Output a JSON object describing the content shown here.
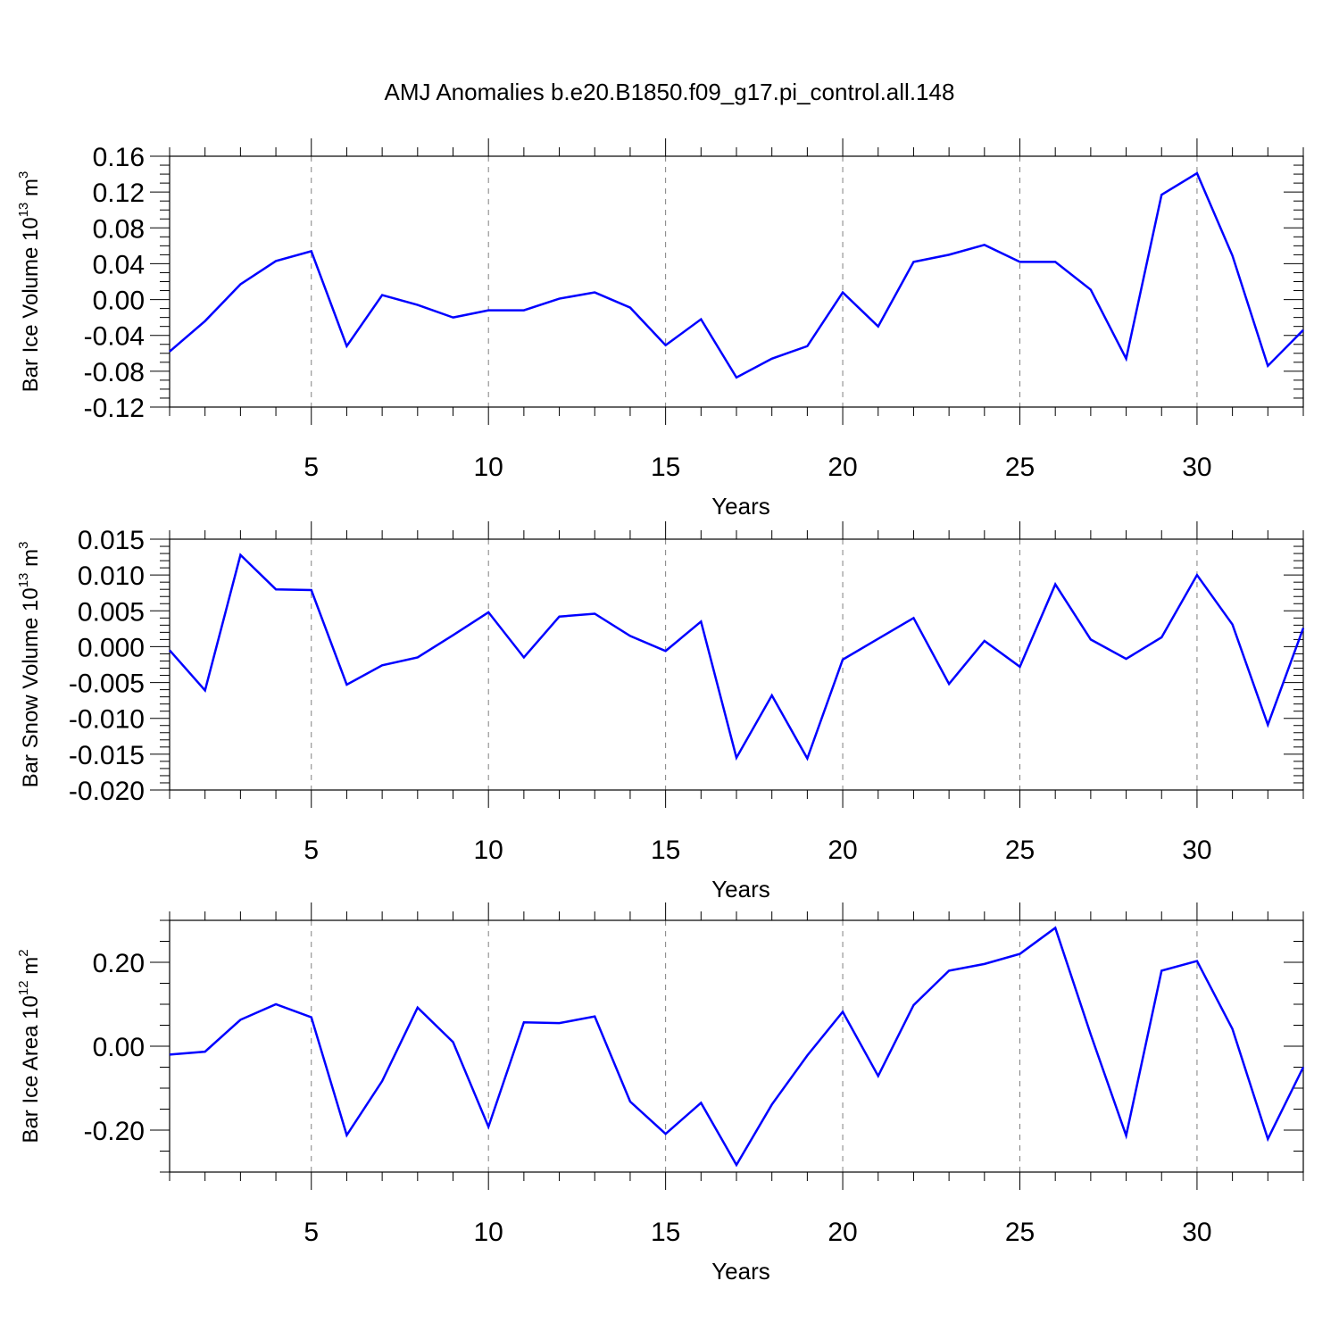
{
  "page": {
    "title": "AMJ Anomalies b.e20.B1850.f09_g17.pi_control.all.148"
  },
  "colors": {
    "series": "#0000ff",
    "axis": "#000000",
    "grid": "#808080"
  },
  "chart_data": [
    {
      "type": "line",
      "ylabel_main": "Bar Ice Volume 10",
      "ylabel_exp": "13",
      "ylabel_unit": "m",
      "ylabel_unit_exp": "3",
      "xlabel": "Years",
      "xlim": [
        1,
        33
      ],
      "ylim": [
        -0.12,
        0.16
      ],
      "ytick_values": [
        -0.12,
        -0.08,
        -0.04,
        0.0,
        0.04,
        0.08,
        0.12,
        0.16
      ],
      "ytick_labels": [
        "-0.12",
        "-0.08",
        "-0.04",
        "0.00",
        "0.04",
        "0.08",
        "0.12",
        "0.16"
      ],
      "ytick_minor_step": 0.01,
      "xtick_values": [
        5,
        10,
        15,
        20,
        25,
        30
      ],
      "xtick_labels": [
        "5",
        "10",
        "15",
        "20",
        "25",
        "30"
      ],
      "grid_x": true,
      "x": [
        1,
        2,
        3,
        4,
        5,
        6,
        7,
        8,
        9,
        10,
        11,
        12,
        13,
        14,
        15,
        16,
        17,
        18,
        19,
        20,
        21,
        22,
        23,
        24,
        25,
        26,
        27,
        28,
        29,
        30,
        31,
        32,
        33
      ],
      "values": [
        -0.058,
        -0.024,
        0.017,
        0.043,
        0.054,
        -0.052,
        0.005,
        -0.006,
        -0.02,
        -0.012,
        -0.012,
        0.001,
        0.008,
        -0.009,
        -0.051,
        -0.022,
        -0.087,
        -0.066,
        -0.052,
        0.008,
        -0.03,
        0.042,
        0.05,
        0.061,
        0.042,
        0.042,
        0.011,
        -0.066,
        0.117,
        0.141,
        0.049,
        -0.074,
        -0.034
      ]
    },
    {
      "type": "line",
      "ylabel_main": "Bar Snow Volume 10",
      "ylabel_exp": "13",
      "ylabel_unit": "m",
      "ylabel_unit_exp": "3",
      "xlabel": "Years",
      "xlim": [
        1,
        33
      ],
      "ylim": [
        -0.02,
        0.015
      ],
      "ytick_values": [
        -0.02,
        -0.015,
        -0.01,
        -0.005,
        0.0,
        0.005,
        0.01,
        0.015
      ],
      "ytick_labels": [
        "-0.020",
        "-0.015",
        "-0.010",
        "-0.005",
        "0.000",
        "0.005",
        "0.010",
        "0.015"
      ],
      "ytick_minor_step": 0.001,
      "xtick_values": [
        5,
        10,
        15,
        20,
        25,
        30
      ],
      "xtick_labels": [
        "5",
        "10",
        "15",
        "20",
        "25",
        "30"
      ],
      "grid_x": true,
      "x": [
        1,
        2,
        3,
        4,
        5,
        6,
        7,
        8,
        9,
        10,
        11,
        12,
        13,
        14,
        15,
        16,
        17,
        18,
        19,
        20,
        21,
        22,
        23,
        24,
        25,
        26,
        27,
        28,
        29,
        30,
        31,
        32,
        33
      ],
      "values": [
        -0.0005,
        -0.0061,
        0.0128,
        0.008,
        0.0079,
        -0.0053,
        -0.0026,
        -0.0015,
        0.0016,
        0.0048,
        -0.0015,
        0.0042,
        0.0046,
        0.0015,
        -0.0006,
        0.0035,
        -0.0155,
        -0.0068,
        -0.0156,
        -0.0018,
        0.0011,
        0.004,
        -0.0052,
        0.0008,
        -0.0028,
        0.0087,
        0.001,
        -0.0017,
        0.0013,
        0.01,
        0.0031,
        -0.0109,
        0.0026
      ]
    },
    {
      "type": "line",
      "ylabel_main": "Bar Ice Area 10",
      "ylabel_exp": "12",
      "ylabel_unit": "m",
      "ylabel_unit_exp": "2",
      "xlabel": "Years",
      "xlim": [
        1,
        33
      ],
      "ylim": [
        -0.3,
        0.3
      ],
      "ytick_values": [
        -0.2,
        0.0,
        0.2
      ],
      "ytick_labels": [
        "-0.20",
        "0.00",
        "0.20"
      ],
      "ytick_minor_step": 0.05,
      "xtick_values": [
        5,
        10,
        15,
        20,
        25,
        30
      ],
      "xtick_labels": [
        "5",
        "10",
        "15",
        "20",
        "25",
        "30"
      ],
      "grid_x": true,
      "x": [
        1,
        2,
        3,
        4,
        5,
        6,
        7,
        8,
        9,
        10,
        11,
        12,
        13,
        14,
        15,
        16,
        17,
        18,
        19,
        20,
        21,
        22,
        23,
        24,
        25,
        26,
        27,
        28,
        29,
        30,
        31,
        32,
        33
      ],
      "values": [
        -0.02,
        -0.013,
        0.063,
        0.1,
        0.069,
        -0.212,
        -0.083,
        0.092,
        0.01,
        -0.192,
        0.057,
        0.055,
        0.071,
        -0.132,
        -0.209,
        -0.135,
        -0.283,
        -0.139,
        -0.022,
        0.082,
        -0.071,
        0.098,
        0.18,
        0.196,
        0.22,
        0.282,
        0.028,
        -0.213,
        0.18,
        0.203,
        0.041,
        -0.221,
        -0.05
      ]
    }
  ]
}
